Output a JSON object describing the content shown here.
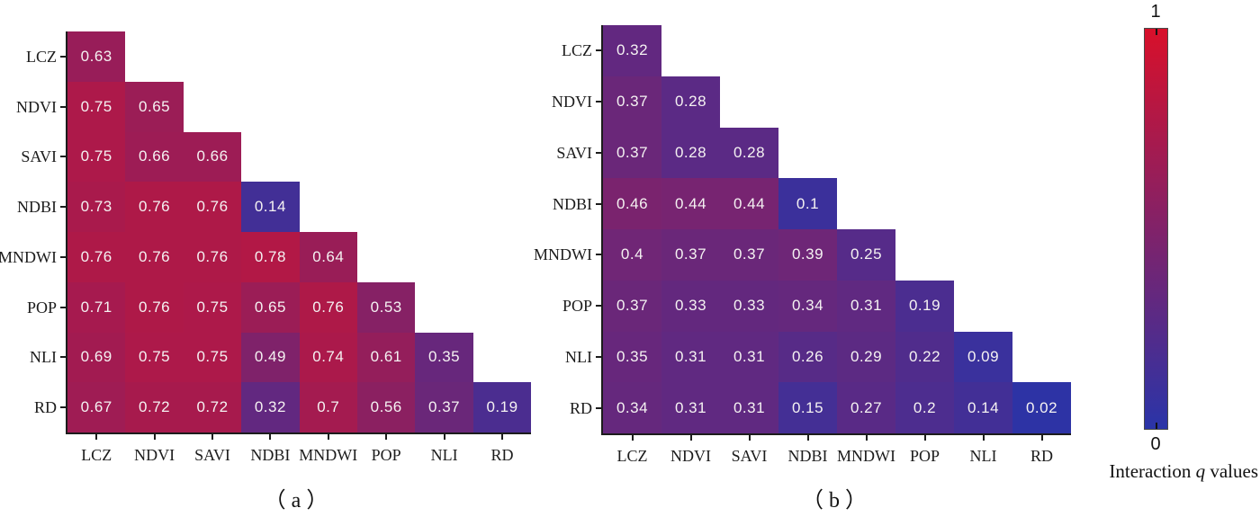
{
  "chart_data": [
    {
      "type": "heatmap",
      "subtype": "lower-triangle-matrix",
      "caption": "（a）",
      "categories": [
        "LCZ",
        "NDVI",
        "SAVI",
        "NDBI",
        "MNDWI",
        "POP",
        "NLI",
        "RD"
      ],
      "rows": [
        [
          0.63
        ],
        [
          0.75,
          0.65
        ],
        [
          0.75,
          0.66,
          0.66
        ],
        [
          0.73,
          0.76,
          0.76,
          0.14
        ],
        [
          0.76,
          0.76,
          0.76,
          0.78,
          0.64
        ],
        [
          0.71,
          0.76,
          0.75,
          0.65,
          0.76,
          0.53
        ],
        [
          0.69,
          0.75,
          0.75,
          0.49,
          0.74,
          0.61,
          0.35
        ],
        [
          0.67,
          0.72,
          0.72,
          0.32,
          0.7,
          0.56,
          0.37,
          0.19
        ]
      ],
      "value_range": [
        0,
        1
      ]
    },
    {
      "type": "heatmap",
      "subtype": "lower-triangle-matrix",
      "caption": "（b）",
      "categories": [
        "LCZ",
        "NDVI",
        "SAVI",
        "NDBI",
        "MNDWI",
        "POP",
        "NLI",
        "RD"
      ],
      "rows": [
        [
          0.32
        ],
        [
          0.37,
          0.28
        ],
        [
          0.37,
          0.28,
          0.28
        ],
        [
          0.46,
          0.44,
          0.44,
          0.1
        ],
        [
          0.4,
          0.37,
          0.37,
          0.39,
          0.25
        ],
        [
          0.37,
          0.33,
          0.33,
          0.34,
          0.31,
          0.19
        ],
        [
          0.35,
          0.31,
          0.31,
          0.26,
          0.29,
          0.22,
          0.09
        ],
        [
          0.34,
          0.31,
          0.31,
          0.15,
          0.27,
          0.2,
          0.14,
          0.02
        ]
      ],
      "value_range": [
        0,
        1
      ]
    }
  ],
  "colorbar": {
    "top_label": "1",
    "bottom_label": "0",
    "title_pre": "Interaction ",
    "title_q": "q",
    "title_post": " values",
    "low_color": "#2a34a8",
    "high_color": "#d8102a"
  }
}
